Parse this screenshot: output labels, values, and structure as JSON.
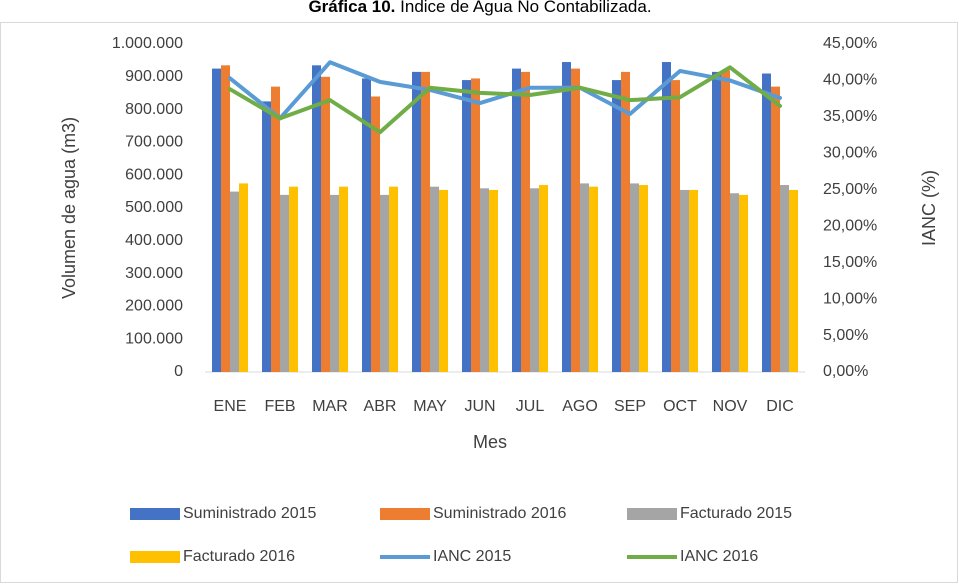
{
  "chart_data": {
    "type": "bar",
    "title_prefix": "Gráfica 10.",
    "title": "Índice de Agua No Contabilizada.",
    "x_label": "Mes",
    "y_label": "Volumen de agua (m3)",
    "y2_label": "IANC (%)",
    "categories": [
      "ENE",
      "FEB",
      "MAR",
      "ABR",
      "MAY",
      "JUN",
      "JUL",
      "AGO",
      "SEP",
      "OCT",
      "NOV",
      "DIC"
    ],
    "series": [
      {
        "name": "Suministrado 2015",
        "color": "#4472c4",
        "values": [
          925000,
          825000,
          935000,
          895000,
          915000,
          890000,
          925000,
          945000,
          890000,
          945000,
          915000,
          910000
        ]
      },
      {
        "name": "Suministrado 2016",
        "color": "#ed7d31",
        "values": [
          935000,
          870000,
          900000,
          840000,
          915000,
          895000,
          915000,
          925000,
          915000,
          890000,
          920000,
          870000
        ]
      },
      {
        "name": "Facturado 2015",
        "color": "#a5a5a5",
        "values": [
          550000,
          540000,
          540000,
          540000,
          565000,
          560000,
          560000,
          575000,
          575000,
          555000,
          545000,
          570000
        ]
      },
      {
        "name": "Facturado 2016",
        "color": "#ffc000",
        "values": [
          575000,
          565000,
          565000,
          565000,
          555000,
          555000,
          570000,
          565000,
          570000,
          555000,
          540000,
          555000
        ]
      },
      {
        "name": "IANC 2015",
        "color": "#5b9bd5",
        "type": "line",
        "axis": "y2",
        "values": [
          40.3,
          34.8,
          42.5,
          39.8,
          38.7,
          36.9,
          39.0,
          39.0,
          35.4,
          41.3,
          40.0,
          37.6
        ]
      },
      {
        "name": "IANC 2016",
        "color": "#70ad47",
        "type": "line",
        "axis": "y2",
        "values": [
          38.8,
          34.8,
          37.3,
          32.9,
          39.0,
          38.3,
          38.0,
          39.0,
          37.3,
          37.7,
          41.8,
          36.5
        ]
      }
    ],
    "ylim": [
      0,
      1000000
    ],
    "yticks": [
      0,
      {
        "value": 100000,
        "label": "100.000"
      },
      {
        "value": 200000,
        "label": "200.000"
      },
      {
        "value": 300000,
        "label": "300.000"
      },
      {
        "value": 400000,
        "label": "400.000"
      },
      {
        "value": 500000,
        "label": "500.000"
      },
      {
        "value": 600000,
        "label": "600.000"
      },
      {
        "value": 700000,
        "label": "700.000"
      },
      {
        "value": 800000,
        "label": "800.000"
      },
      {
        "value": 900000,
        "label": "900.000"
      },
      {
        "value": 1000000,
        "label": "1.000.000"
      }
    ],
    "y2lim": [
      0,
      45
    ],
    "y2ticks": [
      {
        "value": 0,
        "label": "0,00%"
      },
      {
        "value": 5,
        "label": "5,00%"
      },
      {
        "value": 10,
        "label": "10,00%"
      },
      {
        "value": 15,
        "label": "15,00%"
      },
      {
        "value": 20,
        "label": "20,00%"
      },
      {
        "value": 25,
        "label": "25,00%"
      },
      {
        "value": 30,
        "label": "30,00%"
      },
      {
        "value": 35,
        "label": "35,00%"
      },
      {
        "value": 40,
        "label": "40,00%"
      },
      {
        "value": 45,
        "label": "45,00%"
      }
    ],
    "grid": false,
    "legend": "bottom"
  }
}
